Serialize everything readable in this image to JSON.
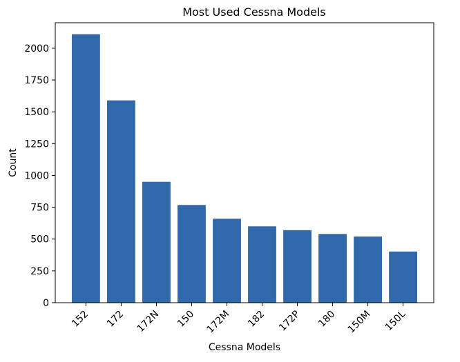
{
  "chart_data": {
    "type": "bar",
    "title": "Most Used Cessna Models",
    "xlabel": "Cessna Models",
    "ylabel": "Count",
    "categories": [
      "152",
      "172",
      "172N",
      "150",
      "172M",
      "182",
      "172P",
      "180",
      "150M",
      "150L"
    ],
    "values": [
      2110,
      1590,
      950,
      768,
      660,
      600,
      570,
      540,
      520,
      402
    ],
    "ylim": [
      0,
      2200
    ],
    "yticks": [
      0,
      250,
      500,
      750,
      1000,
      1250,
      1500,
      1750,
      2000
    ],
    "grid": false,
    "bar_color": "#3068aa"
  }
}
